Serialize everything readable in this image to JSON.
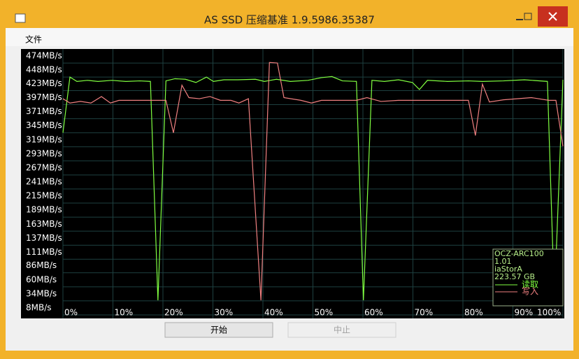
{
  "window": {
    "title": "AS SSD 压缩基准 1.9.5986.35387"
  },
  "menu": [
    "文件"
  ],
  "buttons": [
    "开始",
    "中止"
  ],
  "chart_data": {
    "type": "line",
    "legend_info": [
      "OCZ-ARC100",
      "1.01",
      "iaStorA",
      "223.57 GB"
    ],
    "xlim": [
      0,
      100
    ],
    "xticks": [
      {
        "value": 0,
        "label": "0%"
      },
      {
        "value": 10,
        "label": "10%"
      },
      {
        "value": 20,
        "label": "20%"
      },
      {
        "value": 30,
        "label": "30%"
      },
      {
        "value": 40,
        "label": "40%"
      },
      {
        "value": 50,
        "label": "50%"
      },
      {
        "value": 60,
        "label": "60%"
      },
      {
        "value": 70,
        "label": "70%"
      },
      {
        "value": 80,
        "label": "80%"
      },
      {
        "value": 90,
        "label": "90%"
      },
      {
        "value": 100,
        "label": "100%"
      }
    ],
    "ylim": [
      1.5,
      500
    ],
    "yticks": [
      {
        "value": 474,
        "label": "474MB/s"
      },
      {
        "value": 448,
        "label": "448MB/s"
      },
      {
        "value": 423,
        "label": "423MB/s"
      },
      {
        "value": 397,
        "label": "397MB/s"
      },
      {
        "value": 371,
        "label": "371MB/s"
      },
      {
        "value": 345,
        "label": "345MB/s"
      },
      {
        "value": 319,
        "label": "319MB/s"
      },
      {
        "value": 293,
        "label": "293MB/s"
      },
      {
        "value": 267,
        "label": "267MB/s"
      },
      {
        "value": 241,
        "label": "241MB/s"
      },
      {
        "value": 215,
        "label": "215MB/s"
      },
      {
        "value": 189,
        "label": "189MB/s"
      },
      {
        "value": 163,
        "label": "163MB/s"
      },
      {
        "value": 137,
        "label": "137MB/s"
      },
      {
        "value": 111,
        "label": "111MB/s"
      },
      {
        "value": 86,
        "label": "86MB/s"
      },
      {
        "value": 60,
        "label": "60MB/s"
      },
      {
        "value": 34,
        "label": "34MB/s"
      },
      {
        "value": 8,
        "label": "8MB/s"
      }
    ],
    "grid": true,
    "series": [
      {
        "name": "读取",
        "color": "#80ff40",
        "x": [
          0,
          1.4,
          2.8,
          4.9,
          7.0,
          9.8,
          12.6,
          15.4,
          17.5,
          19.0,
          20.6,
          22.4,
          24.5,
          26.6,
          28.7,
          30.1,
          32.2,
          35.0,
          38.5,
          40.3,
          42.7,
          45.5,
          49.0,
          51.7,
          53.8,
          55.9,
          58.7,
          60.1,
          61.8,
          64.3,
          67.1,
          69.9,
          71.3,
          72.9,
          76.9,
          81.1,
          83.9,
          88.1,
          92.3,
          96.9,
          98.3,
          100
        ],
        "values": [
          345,
          448,
          440,
          442,
          440,
          442,
          440,
          441,
          440,
          35,
          441,
          445,
          444,
          438,
          448,
          440,
          443,
          443,
          444,
          440,
          444,
          440,
          442,
          447,
          449,
          441,
          440,
          35,
          442,
          440,
          443,
          438,
          425,
          442,
          440,
          441,
          440,
          441,
          443,
          440,
          35,
          443
        ]
      },
      {
        "name": "写入",
        "color": "#f08080",
        "x": [
          0,
          1.4,
          3.5,
          5.6,
          7.7,
          9.5,
          11.2,
          15.4,
          19.0,
          20.6,
          22.1,
          23.8,
          25.2,
          27.3,
          29.4,
          31.5,
          33.6,
          35.2,
          37.1,
          39.6,
          41.3,
          42.9,
          44.2,
          47.6,
          49.7,
          51.7,
          55.9,
          58.7,
          60.8,
          63.6,
          67.1,
          71.3,
          76.9,
          81.1,
          82.5,
          83.9,
          85.3,
          88.1,
          93.7,
          97.2,
          98.6,
          100
        ],
        "values": [
          408,
          400,
          403,
          400,
          412,
          400,
          405,
          405,
          405,
          405,
          345,
          433,
          410,
          408,
          412,
          405,
          405,
          400,
          408,
          35,
          475,
          474,
          410,
          405,
          400,
          405,
          405,
          405,
          410,
          403,
          405,
          405,
          405,
          405,
          340,
          435,
          402,
          406,
          410,
          405,
          405,
          320
        ]
      }
    ]
  }
}
